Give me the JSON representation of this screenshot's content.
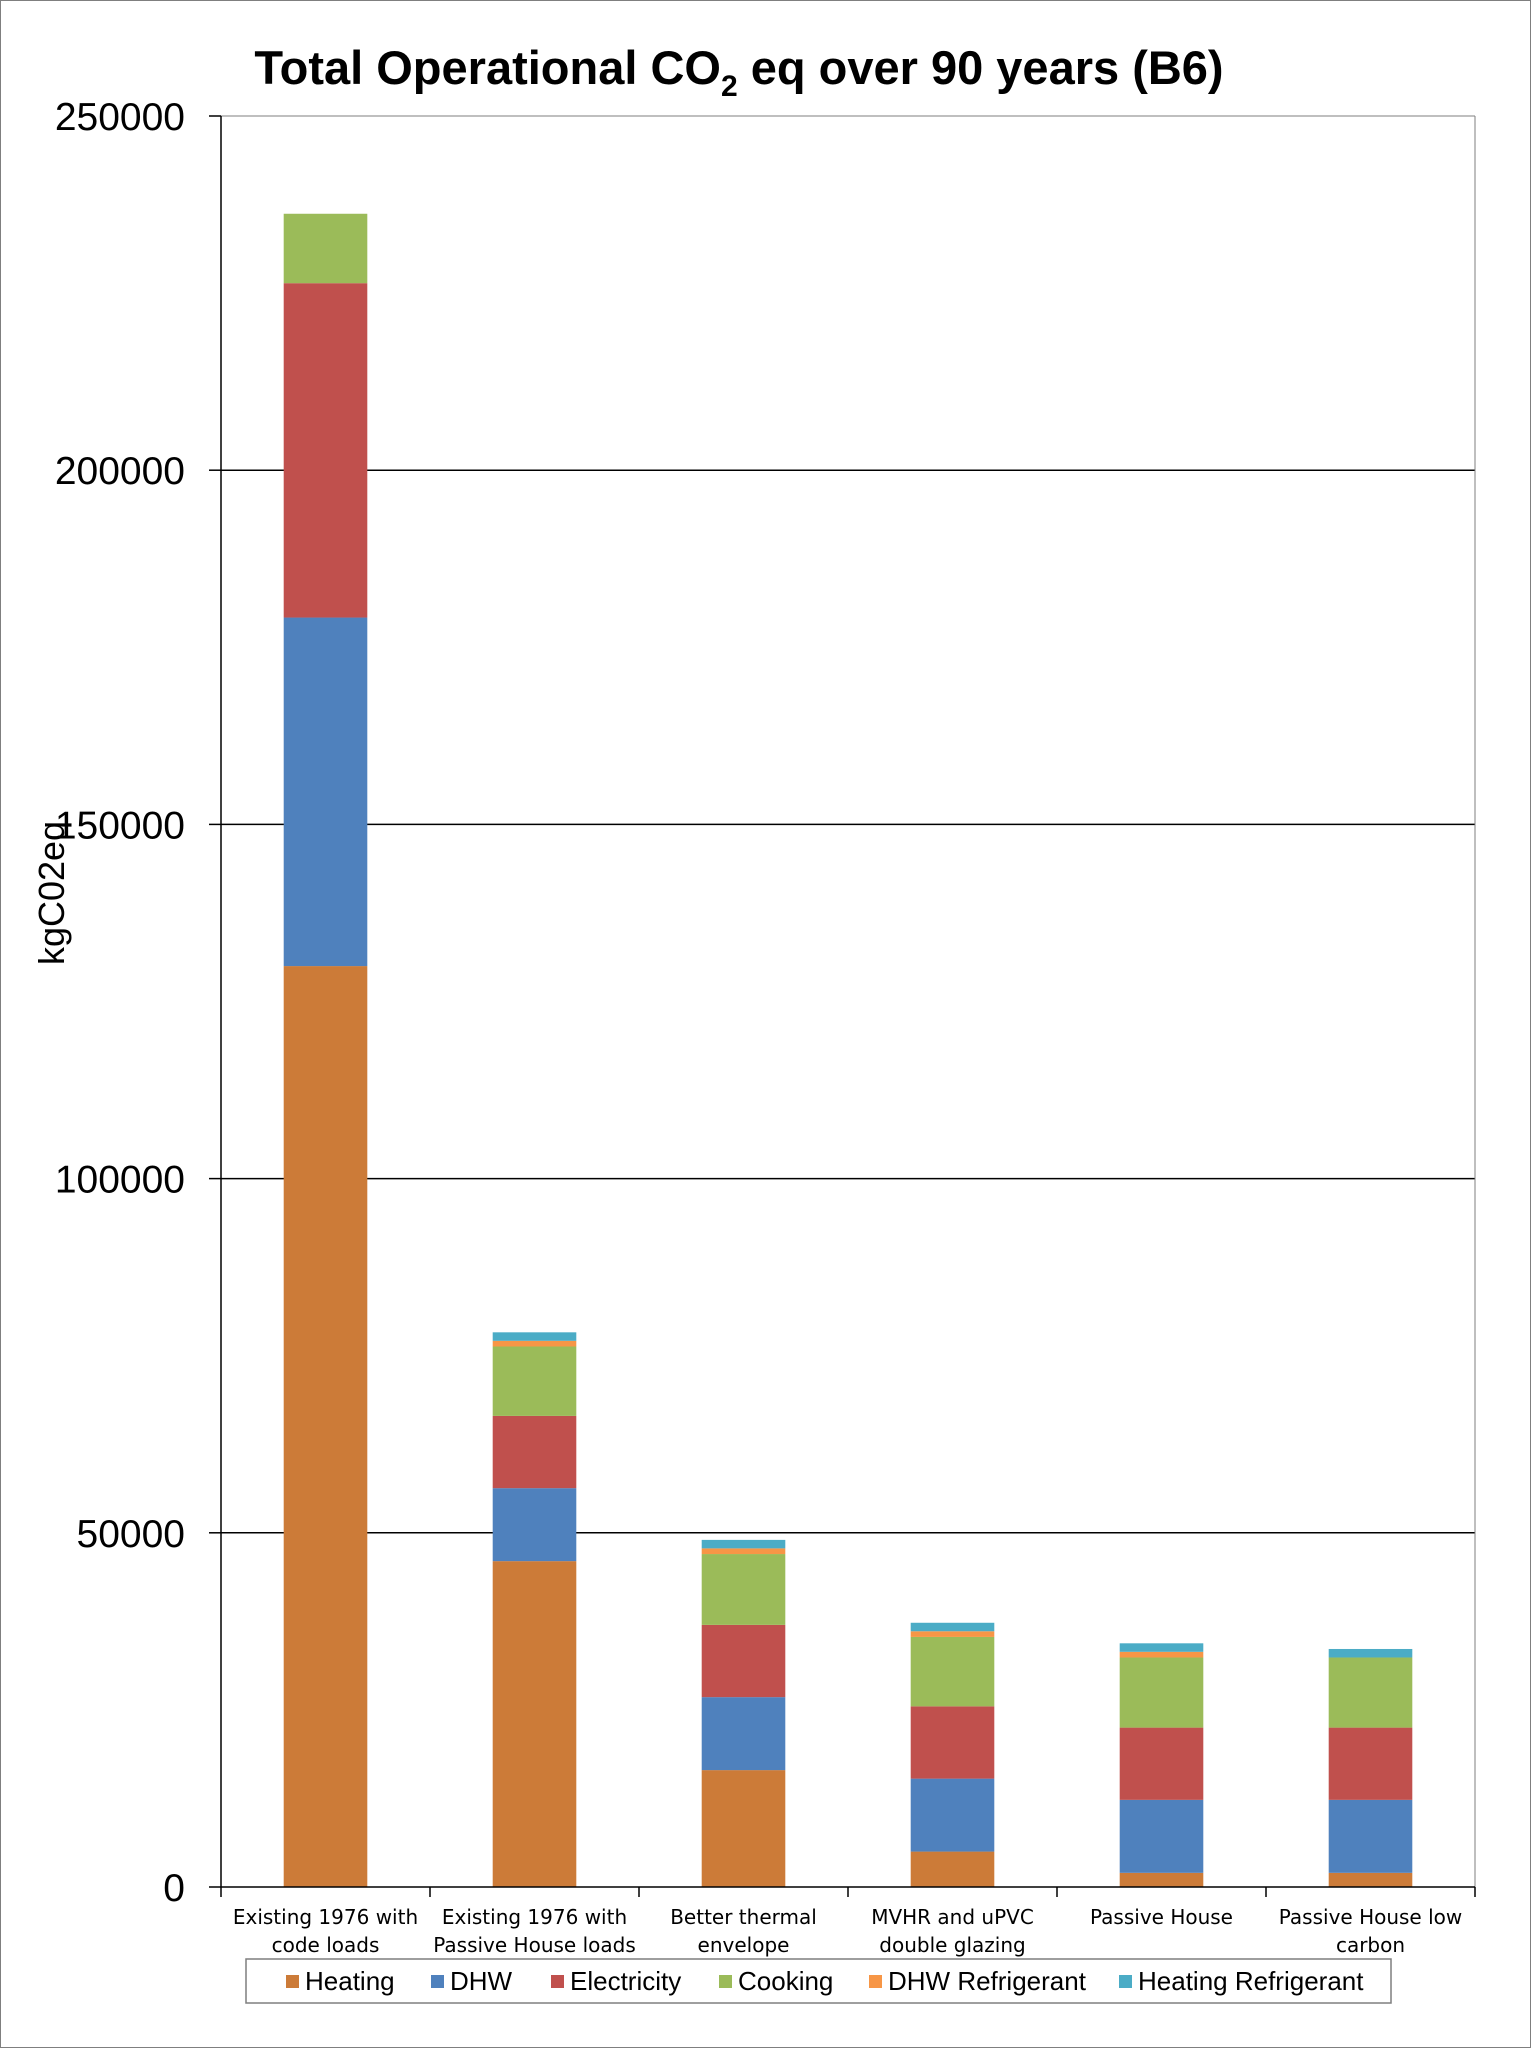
{
  "chart_data": {
    "type": "bar",
    "stacked": true,
    "title": {
      "prefix": "Total Operational CO",
      "subscript": "2",
      "suffix": " eq over 90 years (B6)"
    },
    "xlabel": "",
    "ylabel": "kgC02eq",
    "ylim": [
      0,
      250000
    ],
    "yticks": [
      "0",
      "50000",
      "100000",
      "150000",
      "200000",
      "250000"
    ],
    "grid": true,
    "legend_position": "bottom",
    "categories": [
      [
        "Existing 1976 with",
        "code loads"
      ],
      [
        "Existing 1976 with",
        "Passive House loads"
      ],
      [
        "Better thermal",
        "envelope"
      ],
      [
        "MVHR and uPVC",
        "double glazing"
      ],
      [
        "Passive House"
      ],
      [
        "Passive House low",
        "carbon"
      ]
    ],
    "series": [
      {
        "name": "Heating",
        "color": "#cc7b38",
        "values": [
          130000,
          46000,
          16500,
          5000,
          2000,
          2000
        ]
      },
      {
        "name": "DHW",
        "color": "#4f81bd",
        "values": [
          49200,
          10300,
          10300,
          10300,
          10300,
          10300
        ]
      },
      {
        "name": "Electricity",
        "color": "#c0504d",
        "values": [
          47200,
          10200,
          10200,
          10200,
          10200,
          10200
        ]
      },
      {
        "name": "Cooking",
        "color": "#9bbb59",
        "values": [
          9800,
          9800,
          10000,
          9800,
          9900,
          9900
        ]
      },
      {
        "name": "DHW Refrigerant",
        "color": "#f79646",
        "values": [
          0,
          800,
          800,
          800,
          800,
          0
        ]
      },
      {
        "name": "Heating Refrigerant",
        "color": "#4bacc6",
        "values": [
          0,
          1200,
          1200,
          1200,
          1200,
          1200
        ]
      }
    ]
  }
}
